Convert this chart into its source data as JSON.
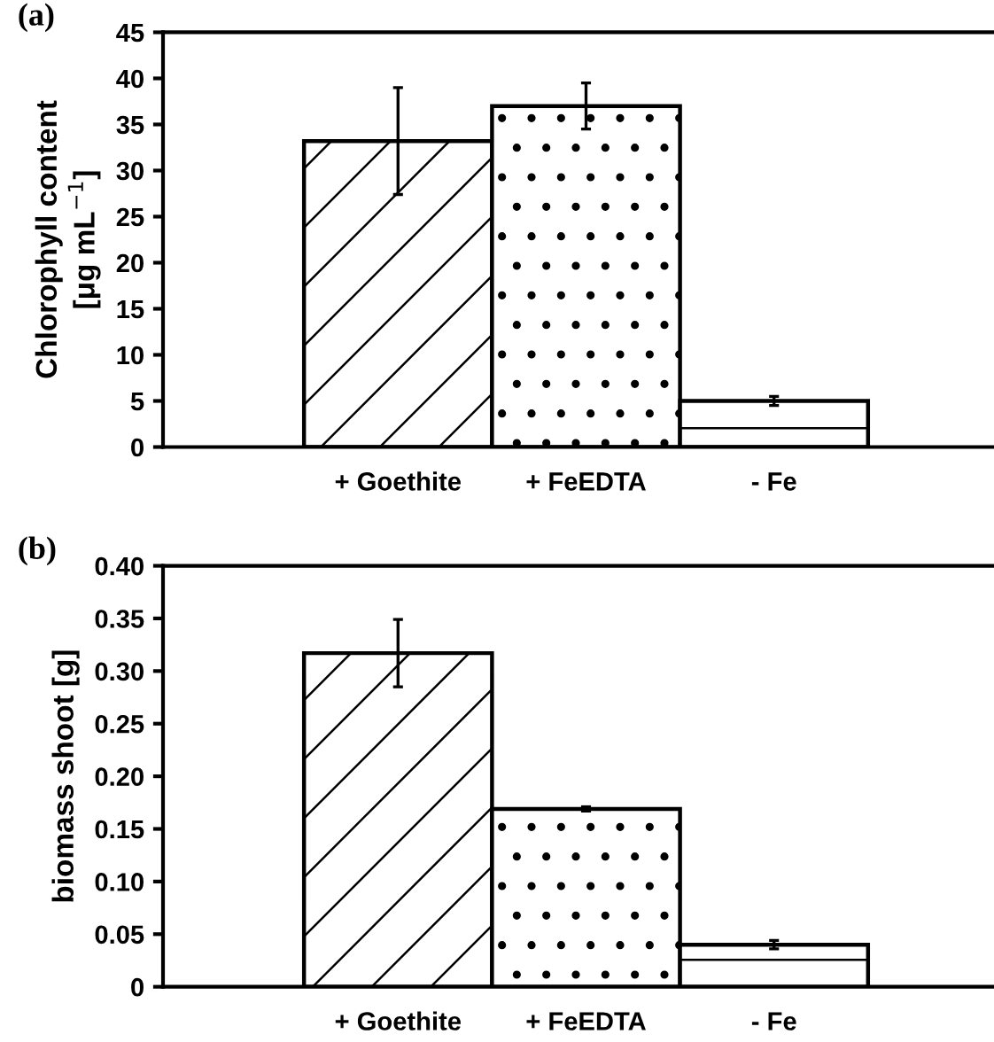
{
  "chart_data": [
    {
      "type": "bar",
      "title": "(a)",
      "ylabel": "Chlorophyll content\n[μg mL$^{−1}$]",
      "categories": [
        "+ Goethite",
        "+ FeEDTA",
        "- Fe"
      ],
      "values": [
        33.2,
        37.0,
        5.0
      ],
      "errors": [
        5.8,
        2.5,
        0.5
      ],
      "colors": [
        "#ffffff",
        "#ffffff",
        "#ffffff"
      ],
      "ylim": [
        0,
        45
      ],
      "yticks": [
        0,
        5,
        10,
        15,
        20,
        25,
        30,
        35,
        40,
        45
      ],
      "grid": false,
      "legend": false
    },
    {
      "type": "bar",
      "title": "(b)",
      "ylabel": "biomass shoot [g]",
      "categories": [
        "+ Goethite",
        "+ FeEDTA",
        "- Fe"
      ],
      "values": [
        0.317,
        0.169,
        0.04
      ],
      "errors": [
        0.032,
        0.002,
        0.004
      ],
      "colors": [
        "#ffffff",
        "#ffffff",
        "#ffffff"
      ],
      "ylim": [
        0,
        0.4
      ],
      "yticks": [
        0,
        {
          "value": 0.05,
          "label": "0.05"
        },
        {
          "value": 0.1,
          "label": "0.10"
        },
        {
          "value": 0.15,
          "label": "0.15"
        },
        {
          "value": 0.2,
          "label": "0.20"
        },
        {
          "value": 0.25,
          "label": "0.25"
        },
        {
          "value": 0.3,
          "label": "0.30"
        },
        {
          "value": 0.35,
          "label": "0.35"
        },
        {
          "value": 0.4,
          "label": "0.40"
        }
      ],
      "grid": false,
      "legend": false
    }
  ]
}
